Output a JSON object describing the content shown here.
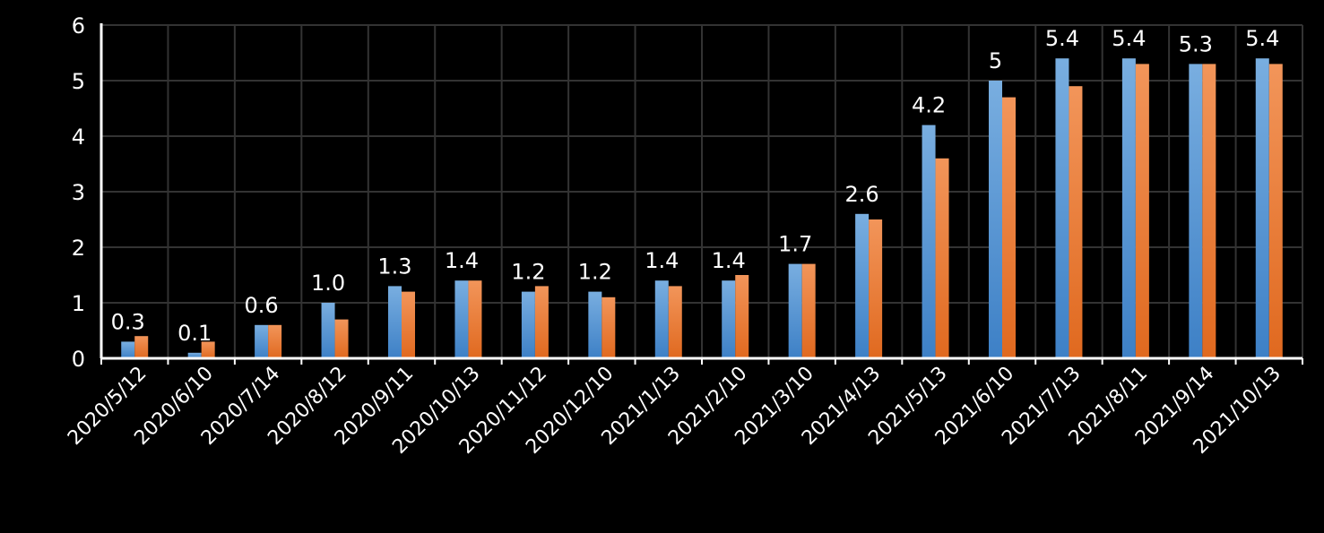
{
  "chart_data": {
    "type": "bar",
    "categories": [
      "2020/5/12",
      "2020/6/10",
      "2020/7/14",
      "2020/8/12",
      "2020/9/11",
      "2020/10/13",
      "2020/11/12",
      "2020/12/10",
      "2021/1/13",
      "2021/2/10",
      "2021/3/10",
      "2021/4/13",
      "2021/5/13",
      "2021/6/10",
      "2021/7/13",
      "2021/8/11",
      "2021/9/14",
      "2021/10/13"
    ],
    "series": [
      {
        "color": "#5B9BD5",
        "values": [
          0.3,
          0.1,
          0.6,
          1.0,
          1.3,
          1.4,
          1.2,
          1.2,
          1.4,
          1.4,
          1.7,
          2.6,
          4.2,
          5,
          5.4,
          5.4,
          5.3,
          5.4
        ],
        "data_labels": [
          "0.3",
          "0.1",
          "0.6",
          "1.0",
          "1.3",
          "1.4",
          "1.2",
          "1.2",
          "1.4",
          "1.4",
          "1.7",
          "2.6",
          "4.2",
          "5",
          "5.4",
          "5.4",
          "5.3",
          "5.4"
        ]
      },
      {
        "color": "#ED7D31",
        "values": [
          0.4,
          0.3,
          0.6,
          0.7,
          1.2,
          1.4,
          1.3,
          1.1,
          1.3,
          1.5,
          1.7,
          2.5,
          3.6,
          4.7,
          4.9,
          5.3,
          5.3,
          5.3
        ]
      }
    ],
    "yticks": [
      "0",
      "1",
      "2",
      "3",
      "4",
      "5",
      "6"
    ],
    "ylim": [
      0,
      6
    ],
    "grid": true,
    "legend": "none",
    "title": "",
    "xlabel": "",
    "ylabel": ""
  }
}
